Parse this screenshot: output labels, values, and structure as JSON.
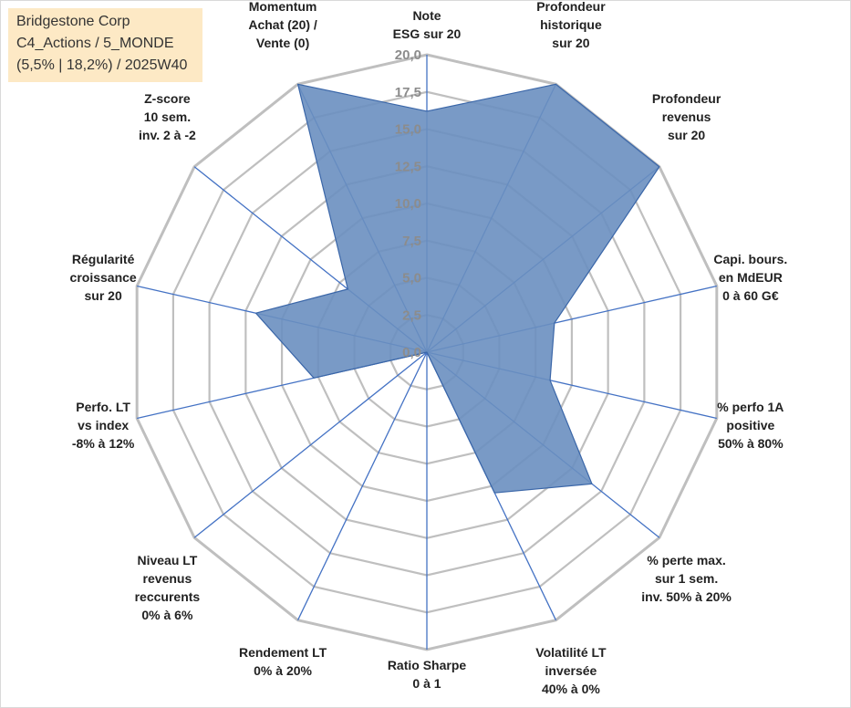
{
  "header": {
    "line1": "Bridgestone Corp",
    "line2": "C4_Actions / 5_MONDE",
    "line3": "(5,5% | 18,2%) / 2025W40"
  },
  "colors": {
    "fill": "#6a8fc0",
    "stroke": "#3a66a8",
    "grid": "#bfbfbf",
    "spoke": "#4472c4",
    "title_bg": "#fde9c5"
  },
  "chart_data": {
    "type": "radar",
    "range": [
      0,
      20
    ],
    "tick_step": 2.5,
    "tick_labels": [
      "0,0",
      "2,5",
      "5,0",
      "7,5",
      "10,0",
      "12,5",
      "15,0",
      "17,5",
      "20,0"
    ],
    "axes": [
      {
        "label": [
          "Note",
          "ESG sur 20"
        ],
        "value": 16.2
      },
      {
        "label": [
          "Profondeur",
          "historique",
          "sur 20"
        ],
        "value": 20.0
      },
      {
        "label": [
          "Profondeur",
          "revenus",
          "sur 20"
        ],
        "value": 20.0
      },
      {
        "label": [
          "Capi. bours.",
          "en MdEUR",
          "0 à 60 G€"
        ],
        "value": 8.8
      },
      {
        "label": [
          "% perfo 1A",
          "positive",
          "50% à 80%"
        ],
        "value": 8.5
      },
      {
        "label": [
          "% perte max.",
          "sur 1 sem.",
          "inv. 50% à 20%"
        ],
        "value": 14.2
      },
      {
        "label": [
          "Volatilité LT",
          "inversée",
          "40% à 0%"
        ],
        "value": 10.5
      },
      {
        "label": [
          "Ratio Sharpe",
          "0 à 1"
        ],
        "value": 0.0
      },
      {
        "label": [
          "Rendement LT",
          "0% à 20%"
        ],
        "value": 0.0
      },
      {
        "label": [
          "Niveau LT",
          "revenus",
          "reccurents",
          "0% à 6%"
        ],
        "value": 0.0
      },
      {
        "label": [
          "Perfo. LT",
          "vs index",
          "-8% à 12%"
        ],
        "value": 7.8
      },
      {
        "label": [
          "Régularité",
          "croissance",
          "sur 20"
        ],
        "value": 11.8
      },
      {
        "label": [
          "Z-score",
          "10 sem.",
          "inv. 2 à -2"
        ],
        "value": 6.8
      },
      {
        "label": [
          "Momentum",
          "Achat (20) /",
          "Vente (0)"
        ],
        "value": 20.0
      }
    ]
  }
}
